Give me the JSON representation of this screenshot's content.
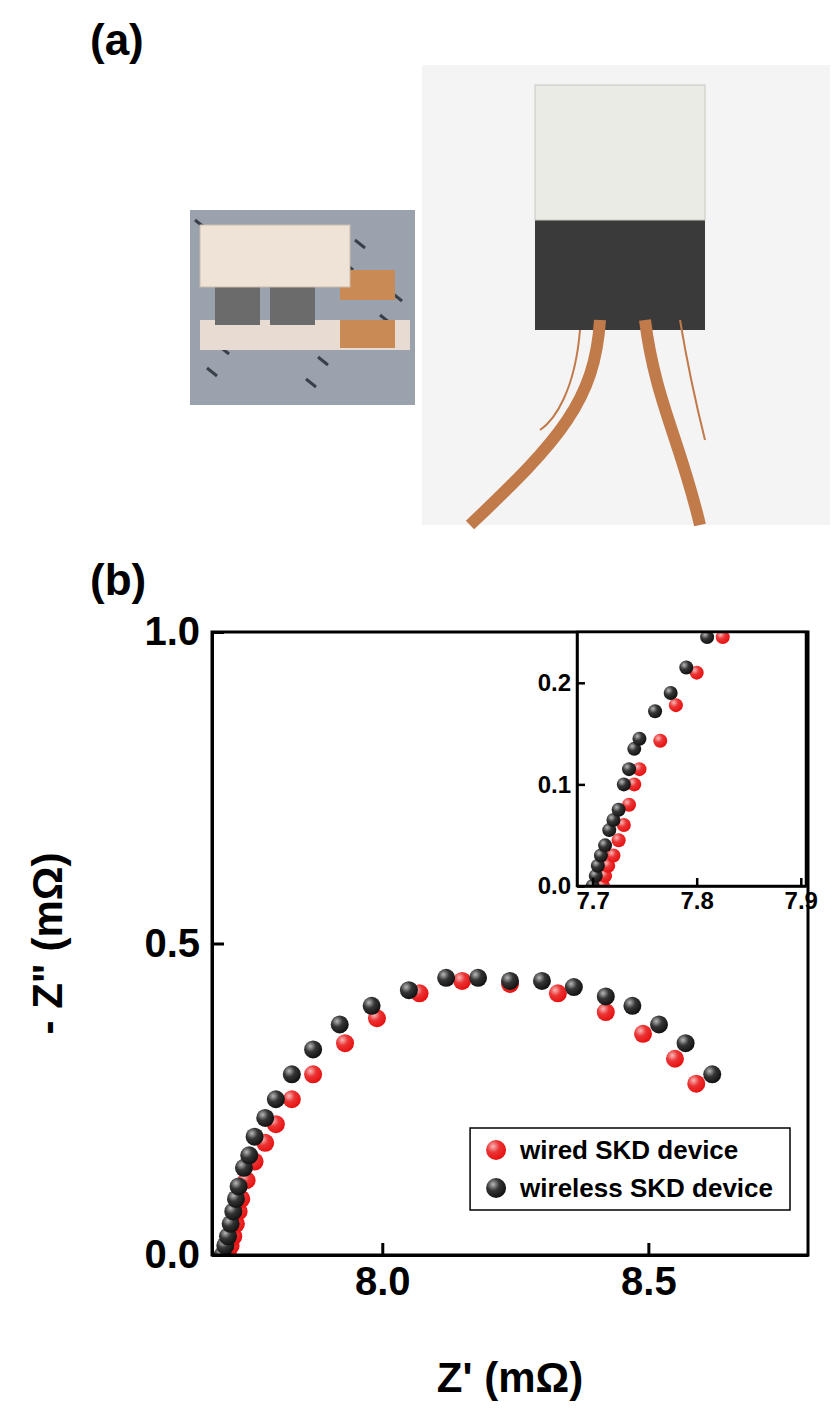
{
  "panel_labels": [
    "(a)",
    "(b)"
  ],
  "chart_data": [
    {
      "type": "scatter",
      "x_label": "Z' (mΩ)",
      "y_label": "- Z\" (mΩ)",
      "xlim": [
        7.68,
        8.8
      ],
      "xticks": [
        {
          "value": 8,
          "label": "8.0"
        },
        {
          "value": 8.5,
          "label": "8.5"
        }
      ],
      "ylim": [
        0,
        1
      ],
      "yticks": [
        {
          "value": 0,
          "label": "0.0"
        },
        {
          "value": 0.5,
          "label": "0.5"
        },
        {
          "value": 1,
          "label": "1.0"
        }
      ],
      "legend": "lower right",
      "series": [
        {
          "name": "wired SKD device",
          "color": "#e81010",
          "marker": "sphere",
          "x": [
            7.71,
            7.715,
            7.72,
            7.725,
            7.73,
            7.735,
            7.745,
            7.76,
            7.78,
            7.8,
            7.83,
            7.87,
            7.93,
            7.99,
            8.07,
            8.15,
            8.24,
            8.33,
            8.42,
            8.49,
            8.55,
            8.59
          ],
          "values": [
            0,
            0.015,
            0.03,
            0.05,
            0.07,
            0.09,
            0.12,
            0.15,
            0.18,
            0.21,
            0.25,
            0.29,
            0.34,
            0.38,
            0.42,
            0.44,
            0.435,
            0.42,
            0.39,
            0.355,
            0.315,
            0.275
          ]
        },
        {
          "name": "wireless SKD device",
          "color": "#111111",
          "marker": "sphere",
          "x": [
            7.7,
            7.705,
            7.71,
            7.715,
            7.72,
            7.725,
            7.73,
            7.74,
            7.75,
            7.76,
            7.78,
            7.8,
            7.83,
            7.87,
            7.92,
            7.98,
            8.05,
            8.12,
            8.18,
            8.24,
            8.3,
            8.36,
            8.42,
            8.47,
            8.52,
            8.57,
            8.62
          ],
          "values": [
            0,
            0.015,
            0.03,
            0.05,
            0.07,
            0.09,
            0.11,
            0.14,
            0.16,
            0.19,
            0.22,
            0.25,
            0.29,
            0.33,
            0.37,
            0.4,
            0.425,
            0.445,
            0.445,
            0.44,
            0.44,
            0.43,
            0.415,
            0.4,
            0.37,
            0.34,
            0.29
          ]
        }
      ]
    },
    {
      "type": "scatter",
      "xlim": [
        7.685,
        7.905
      ],
      "xticks": [
        7.7,
        7.8,
        7.9
      ],
      "ylim": [
        0,
        0.25
      ],
      "yticks": [
        {
          "value": 0,
          "label": "0.0"
        },
        {
          "value": 0.1,
          "label": "0.1"
        },
        {
          "value": 0.2,
          "label": "0.2"
        }
      ],
      "series": [
        {
          "color": "#e81010",
          "marker": "sphere",
          "x": [
            7.71,
            7.712,
            7.715,
            7.72,
            7.725,
            7.73,
            7.735,
            7.74,
            7.745,
            7.765,
            7.78,
            7.8,
            7.825
          ],
          "values": [
            0,
            0.01,
            0.02,
            0.03,
            0.045,
            0.06,
            0.08,
            0.1,
            0.115,
            0.143,
            0.178,
            0.21,
            0.245
          ]
        },
        {
          "color": "#111111",
          "marker": "sphere",
          "x": [
            7.7,
            7.703,
            7.705,
            7.708,
            7.712,
            7.716,
            7.72,
            7.725,
            7.73,
            7.735,
            7.74,
            7.745,
            7.76,
            7.775,
            7.79,
            7.81
          ],
          "values": [
            0,
            0.01,
            0.02,
            0.03,
            0.04,
            0.055,
            0.065,
            0.075,
            0.1,
            0.115,
            0.135,
            0.145,
            0.172,
            0.19,
            0.215,
            0.245
          ]
        }
      ]
    }
  ]
}
